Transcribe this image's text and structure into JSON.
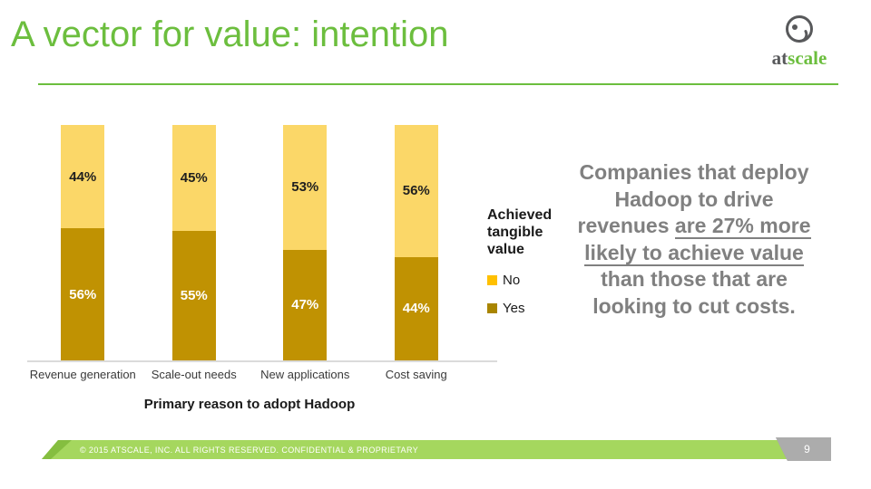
{
  "slide": {
    "title": "A vector for value: intention",
    "footer_text": "© 2015 ATSCALE, INC. ALL RIGHTS RESERVED. CONFIDENTIAL & PROPRIETARY",
    "page_number": "9"
  },
  "logo": {
    "text_at": "at",
    "text_scale": "scale"
  },
  "colors": {
    "title_green": "#6CBE3E",
    "footer_green": "#A5D75E",
    "footer_green_dark": "#85BE40",
    "page_badge_gray": "#ACACAC",
    "callout_gray": "#808080",
    "axis_line_gray": "#DBDBDB"
  },
  "chart_data": {
    "type": "bar",
    "stacked": true,
    "unit": "percent",
    "title": "",
    "xlabel": "Primary reason to adopt Hadoop",
    "ylabel": "",
    "ylim": [
      0,
      100
    ],
    "grid": false,
    "legend_title": "Achieved tangible value",
    "legend_position": "right",
    "categories": [
      "Revenue generation",
      "Scale-out needs",
      "New applications",
      "Cost saving"
    ],
    "series": [
      {
        "name": "No",
        "values": [
          44,
          45,
          53,
          56
        ],
        "bar_color": "#FBD768",
        "legend_color": "#FFC000",
        "label_color": "#1F1F1F"
      },
      {
        "name": "Yes",
        "values": [
          56,
          55,
          47,
          44
        ],
        "bar_color": "#C09202",
        "legend_color": "#A98500",
        "label_color": "#FFFFFF"
      }
    ]
  },
  "callout": {
    "lines": [
      {
        "plain": "Companies that deploy"
      },
      {
        "plain": "Hadoop to drive"
      },
      {
        "plain": "revenues ",
        "underline": "are 27% more"
      },
      {
        "underline": "likely to achieve value"
      },
      {
        "plain": "than those that are"
      },
      {
        "plain": "looking to cut costs."
      }
    ]
  }
}
